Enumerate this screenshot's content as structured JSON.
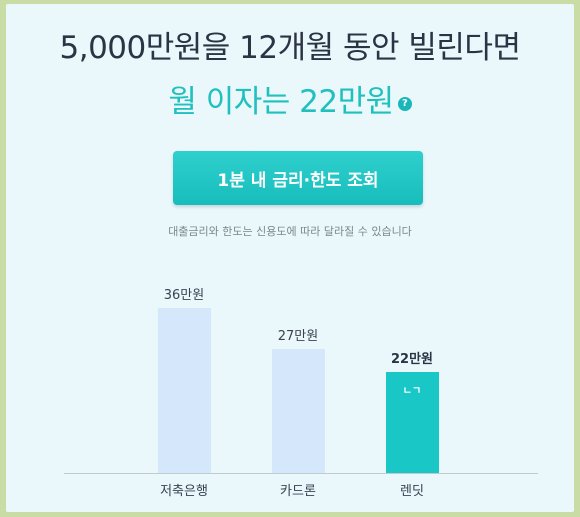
{
  "headline": "5,000만원을 12개월 동안 빌린다면",
  "subline": "월 이자는 22만원",
  "help_icon_glyph": "?",
  "cta_label": "1분 내 금리·한도 조회",
  "notice": "대출금리와 한도는 신용도에 따라 달라질 수 있습니다",
  "colors": {
    "accent": "#1fc0be",
    "bar_default": "#d5e8fb",
    "bar_highlight": "#19c7c6"
  },
  "chart_data": {
    "type": "bar",
    "categories": [
      "저축은행",
      "카드론",
      "렌딧"
    ],
    "values": [
      36,
      27,
      22
    ],
    "value_labels": [
      "36만원",
      "27만원",
      "22만원"
    ],
    "highlight_index": 2,
    "logo_mark": "ㄴㄱ",
    "ylim": [
      0,
      40
    ]
  }
}
